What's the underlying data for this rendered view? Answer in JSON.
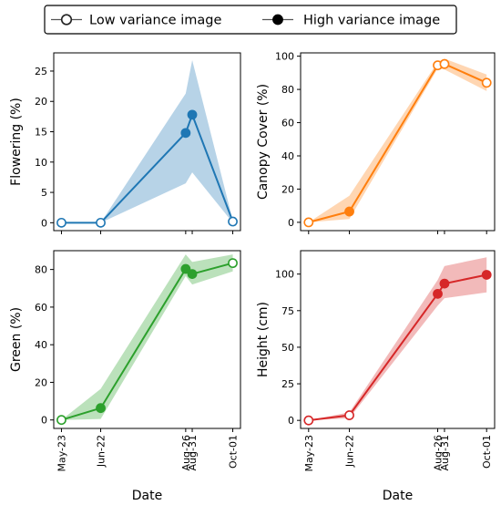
{
  "legend": {
    "items": [
      {
        "label": "Low variance image",
        "marker": "open-circle"
      },
      {
        "label": "High variance image",
        "marker": "filled-circle"
      }
    ]
  },
  "chart_data": [
    {
      "type": "line",
      "id": "flowering",
      "ylabel": "Flowering (%)",
      "xlabel": "",
      "color": "#1f77b4",
      "x": [
        "2023-05-23",
        "2023-06-22",
        "2023-08-26",
        "2023-08-31",
        "2023-10-01"
      ],
      "xticks": [
        "May-23",
        "Jun-22",
        "Aug-26",
        "Aug-31",
        "Oct-01"
      ],
      "y": [
        0,
        0,
        14.8,
        17.8,
        0.2
      ],
      "y_lower": [
        0,
        0,
        6.5,
        8.3,
        0
      ],
      "y_upper": [
        0,
        0,
        21.3,
        26.8,
        0.4
      ],
      "variance": [
        "low",
        "low",
        "high",
        "high",
        "low"
      ],
      "ylim": [
        -1.3,
        28
      ],
      "yticks": [
        0,
        5,
        10,
        15,
        20,
        25
      ]
    },
    {
      "type": "line",
      "id": "canopy",
      "ylabel": "Canopy Cover (%)",
      "xlabel": "",
      "color": "#ff7f0e",
      "x": [
        "2023-05-23",
        "2023-06-22",
        "2023-08-26",
        "2023-08-31",
        "2023-10-01"
      ],
      "xticks": [
        "May-23",
        "Jun-22",
        "Aug-26",
        "Aug-31",
        "Oct-01"
      ],
      "y": [
        0,
        6.5,
        94.5,
        95.3,
        84
      ],
      "y_lower": [
        0,
        2,
        92.5,
        92,
        79
      ],
      "y_upper": [
        0,
        16,
        96.5,
        98.5,
        89
      ],
      "variance": [
        "low",
        "high",
        "low",
        "low",
        "low"
      ],
      "ylim": [
        -5,
        102
      ],
      "yticks": [
        0,
        20,
        40,
        60,
        80,
        100
      ]
    },
    {
      "type": "line",
      "id": "green",
      "ylabel": "Green (%)",
      "xlabel": "Date",
      "color": "#2ca02c",
      "x": [
        "2023-05-23",
        "2023-06-22",
        "2023-08-26",
        "2023-08-31",
        "2023-10-01"
      ],
      "xticks": [
        "May-23",
        "Jun-22",
        "Aug-26",
        "Aug-31",
        "Oct-01"
      ],
      "y": [
        0,
        6.3,
        80.3,
        77.6,
        83.4
      ],
      "y_lower": [
        0,
        0.5,
        76.5,
        72,
        79
      ],
      "y_upper": [
        0,
        16.5,
        88,
        84,
        88
      ],
      "variance": [
        "low",
        "high",
        "high",
        "high",
        "low"
      ],
      "ylim": [
        -4.5,
        90
      ],
      "yticks": [
        0,
        20,
        40,
        60,
        80
      ]
    },
    {
      "type": "line",
      "id": "height",
      "ylabel": "Height (cm)",
      "xlabel": "Date",
      "color": "#d62728",
      "x": [
        "2023-05-23",
        "2023-06-22",
        "2023-08-26",
        "2023-08-31",
        "2023-10-01"
      ],
      "xticks": [
        "May-23",
        "Jun-22",
        "Aug-26",
        "Aug-31",
        "Oct-01"
      ],
      "y": [
        0,
        3.5,
        86.5,
        93.5,
        99.5
      ],
      "y_lower": [
        0,
        1.5,
        78.5,
        83.5,
        87.5
      ],
      "y_upper": [
        0,
        5.5,
        96,
        105.5,
        111.5
      ],
      "variance": [
        "low",
        "low",
        "high",
        "high",
        "high"
      ],
      "ylim": [
        -5.5,
        116
      ],
      "yticks": [
        0,
        25,
        50,
        75,
        100
      ]
    }
  ]
}
